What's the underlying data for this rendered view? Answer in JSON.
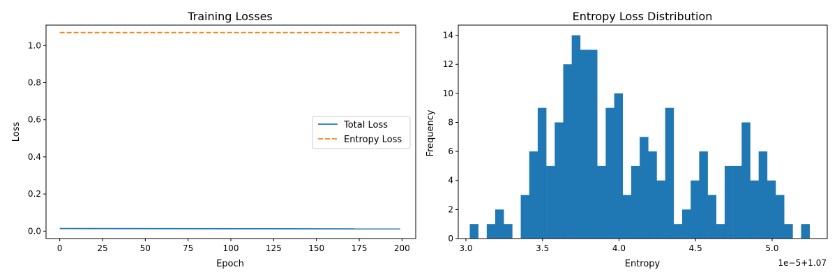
{
  "colors": {
    "series_blue": "#1f77b4",
    "series_orange": "#ff7f0e"
  },
  "chart_data": [
    {
      "type": "line",
      "title": "Training Losses",
      "xlabel": "Epoch",
      "ylabel": "Loss",
      "xlim": [
        -8,
        208
      ],
      "ylim": [
        -0.04,
        1.11
      ],
      "xticks": [
        0,
        25,
        50,
        75,
        100,
        125,
        150,
        175,
        200
      ],
      "yticks": [
        0.0,
        0.2,
        0.4,
        0.6,
        0.8,
        1.0
      ],
      "xtick_labels": [
        "0",
        "25",
        "50",
        "75",
        "100",
        "125",
        "150",
        "175",
        "200"
      ],
      "ytick_labels": [
        "0.0",
        "0.2",
        "0.4",
        "0.6",
        "0.8",
        "1.0"
      ],
      "legend_position": "center-right",
      "grid": false,
      "series": [
        {
          "name": "Total Loss",
          "style": "solid",
          "color": "#1f77b4",
          "x": [
            0,
            199
          ],
          "y": [
            0.014,
            0.012
          ]
        },
        {
          "name": "Entropy Loss",
          "style": "dashed",
          "color": "#ff7f0e",
          "x": [
            0,
            199
          ],
          "y": [
            1.07,
            1.07
          ]
        }
      ]
    },
    {
      "type": "bar",
      "subtype": "histogram",
      "title": "Entropy Loss Distribution",
      "xlabel": "Entropy",
      "ylabel": "Frequency",
      "offset_label": "1e−5+1.07",
      "xlim": [
        2.95,
        5.36
      ],
      "ylim": [
        0,
        14.7
      ],
      "xticks": [
        3.0,
        3.5,
        4.0,
        4.5,
        5.0
      ],
      "yticks": [
        0,
        2,
        4,
        6,
        8,
        10,
        12,
        14
      ],
      "xtick_labels": [
        "3.0",
        "3.5",
        "4.0",
        "4.5",
        "5.0"
      ],
      "ytick_labels": [
        "0",
        "2",
        "4",
        "6",
        "8",
        "10",
        "12",
        "14"
      ],
      "grid": false,
      "bin_start": 3.025,
      "bin_width": 0.0555,
      "values": [
        1,
        0,
        1,
        2,
        1,
        0,
        3,
        6,
        9,
        5,
        8,
        12,
        14,
        13,
        13,
        5,
        9,
        10,
        3,
        5,
        7,
        6,
        4,
        9,
        1,
        2,
        4,
        6,
        3,
        1,
        5,
        5,
        8,
        4,
        6,
        4,
        3,
        1,
        0,
        1
      ],
      "color": "#1f77b4"
    }
  ]
}
